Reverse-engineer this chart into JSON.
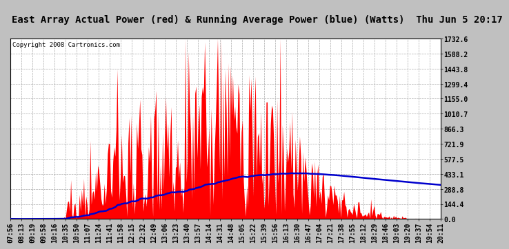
{
  "title": "East Array Actual Power (red) & Running Average Power (blue) (Watts)  Thu Jun 5 20:17",
  "copyright": "Copyright 2008 Cartronics.com",
  "ylim": [
    0,
    1732.6
  ],
  "yticks": [
    0.0,
    144.4,
    288.8,
    433.1,
    577.5,
    721.9,
    866.3,
    1010.7,
    1155.0,
    1299.4,
    1443.8,
    1588.2,
    1732.6
  ],
  "xtick_labels": [
    "07:56",
    "08:13",
    "09:19",
    "09:58",
    "10:16",
    "10:35",
    "10:50",
    "11:07",
    "11:24",
    "11:41",
    "11:58",
    "12:15",
    "12:32",
    "12:49",
    "13:06",
    "13:23",
    "13:40",
    "13:57",
    "14:14",
    "14:31",
    "14:48",
    "15:05",
    "15:22",
    "15:39",
    "15:56",
    "16:13",
    "16:30",
    "16:47",
    "17:04",
    "17:21",
    "17:38",
    "17:55",
    "18:12",
    "18:29",
    "18:46",
    "19:03",
    "19:20",
    "19:37",
    "19:54",
    "20:11"
  ],
  "background_color": "#c0c0c0",
  "plot_bg_color": "#ffffff",
  "grid_color": "#a0a0a0",
  "title_color": "#000000",
  "red_color": "#ff0000",
  "blue_color": "#0000cd",
  "title_fontsize": 10,
  "copyright_fontsize": 6.5,
  "tick_fontsize": 7
}
